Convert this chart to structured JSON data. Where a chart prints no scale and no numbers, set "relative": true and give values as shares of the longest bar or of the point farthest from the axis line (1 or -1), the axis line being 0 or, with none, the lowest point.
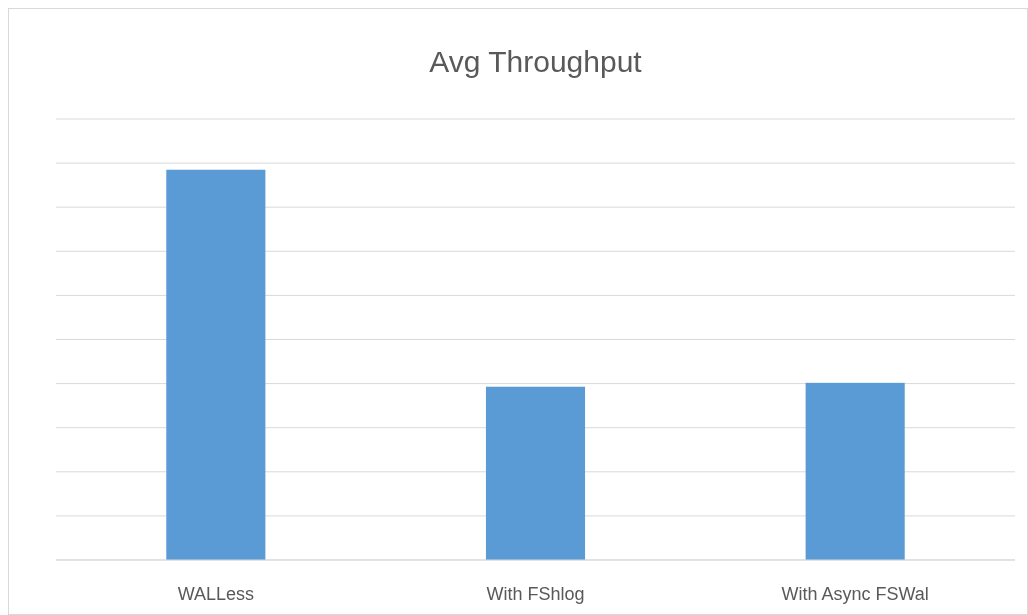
{
  "chart_data": {
    "type": "bar",
    "title": "Avg Throughput",
    "categories": [
      "WALLess",
      "With FShlog",
      "With Async FSWal"
    ],
    "values": [
      1,
      0.444,
      0.454
    ],
    "color": "#5b9bd5",
    "relative": true,
    "grid": true
  }
}
